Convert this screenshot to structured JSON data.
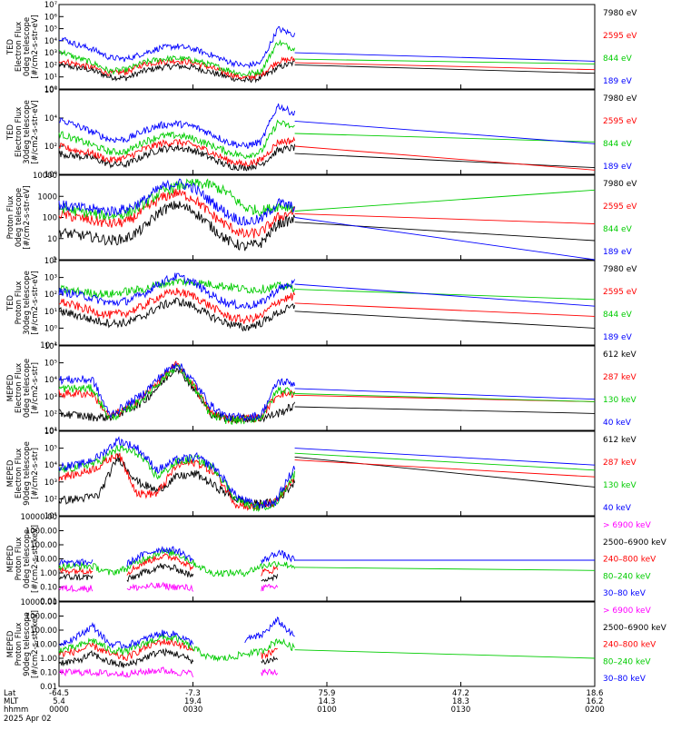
{
  "chart_data": [
    {
      "type": "line",
      "ylabel_lines": [
        "TED",
        "Electron Flux",
        "0deg telescope",
        "[#/cm2-s-str-eV]"
      ],
      "y_scale": "log",
      "ylim": [
        1,
        10000000
      ],
      "yticks": [
        "10⁰",
        "10¹",
        "10²",
        "10³",
        "10⁴",
        "10⁵",
        "10⁶",
        "10⁷"
      ],
      "channels": [
        {
          "label": "7980 eV",
          "color": "#000000",
          "values": [
            100,
            60,
            35,
            10,
            8,
            30,
            60,
            80,
            60,
            25,
            10,
            5,
            8,
            60,
            150,
            100,
            60,
            20
          ]
        },
        {
          "label": "2595 eV",
          "color": "#ff0000",
          "values": [
            250,
            120,
            60,
            20,
            25,
            110,
            180,
            220,
            150,
            60,
            20,
            8,
            15,
            200,
            300,
            150,
            80,
            40
          ]
        },
        {
          "label": "844 eV",
          "color": "#00cc00",
          "values": [
            1500,
            400,
            150,
            30,
            40,
            150,
            300,
            350,
            250,
            100,
            40,
            15,
            30,
            8000,
            2000,
            300,
            200,
            120
          ]
        },
        {
          "label": "189 eV",
          "color": "#0000ff",
          "values": [
            20000,
            5000,
            2000,
            400,
            300,
            900,
            2500,
            3500,
            2000,
            700,
            200,
            80,
            150,
            100000,
            30000,
            1000,
            500,
            200
          ]
        }
      ]
    },
    {
      "type": "line",
      "ylabel_lines": [
        "TED",
        "Electron Flux",
        "30deg telescope",
        "[#/cm2-s-str-eV]"
      ],
      "y_scale": "log",
      "ylim": [
        1,
        1000000
      ],
      "yticks": [
        "10⁰",
        "10²",
        "10⁴",
        "10⁶"
      ],
      "channels": [
        {
          "label": "7980 eV",
          "color": "#000000",
          "values": [
            30,
            20,
            15,
            5,
            5,
            20,
            60,
            80,
            50,
            15,
            4,
            3,
            5,
            50,
            80,
            30,
            10,
            3
          ]
        },
        {
          "label": "2595 eV",
          "color": "#ff0000",
          "values": [
            100,
            50,
            30,
            10,
            15,
            60,
            150,
            200,
            120,
            40,
            10,
            5,
            10,
            200,
            250,
            100,
            10,
            2
          ]
        },
        {
          "label": "844 eV",
          "color": "#00cc00",
          "values": [
            800,
            300,
            120,
            40,
            40,
            200,
            500,
            600,
            350,
            120,
            40,
            20,
            40,
            5000,
            2000,
            800,
            400,
            200
          ]
        },
        {
          "label": "189 eV",
          "color": "#0000ff",
          "values": [
            8000,
            3000,
            1000,
            300,
            300,
            1200,
            3000,
            4000,
            2500,
            800,
            200,
            100,
            200,
            80000,
            20000,
            6000,
            1200,
            150
          ]
        }
      ]
    },
    {
      "type": "line",
      "ylabel_lines": [
        "Proton Flux",
        "0deg telescope",
        "[#/cm2-s-str-eV]"
      ],
      "y_scale": "log",
      "ylim": [
        1,
        10000
      ],
      "yticks": [
        "1",
        "10",
        "100",
        "1000",
        "10000"
      ],
      "channels": [
        {
          "label": "7980 eV",
          "color": "#000000",
          "values": [
            20,
            15,
            12,
            8,
            10,
            30,
            200,
            400,
            200,
            40,
            8,
            4,
            6,
            50,
            80,
            60,
            20,
            8
          ]
        },
        {
          "label": "2595 eV",
          "color": "#ff0000",
          "values": [
            150,
            100,
            70,
            50,
            60,
            200,
            800,
            1500,
            800,
            150,
            40,
            15,
            20,
            100,
            200,
            150,
            80,
            50
          ]
        },
        {
          "label": "844 eV",
          "color": "#00cc00",
          "values": [
            300,
            200,
            150,
            120,
            150,
            400,
            1500,
            3000,
            4000,
            3500,
            1500,
            300,
            200,
            350,
            300,
            200,
            500,
            2000
          ]
        },
        {
          "label": "189 eV",
          "color": "#0000ff",
          "values": [
            400,
            300,
            250,
            200,
            250,
            600,
            2500,
            4500,
            2500,
            600,
            150,
            60,
            80,
            500,
            300,
            100,
            10,
            1
          ]
        }
      ]
    },
    {
      "type": "line",
      "ylabel_lines": [
        "TED",
        "Proton Flux",
        "30deg telescope",
        "[#/cm2-s-str-eV]"
      ],
      "y_scale": "log",
      "ylim": [
        0.1,
        10000
      ],
      "yticks": [
        "10⁻¹",
        "10⁰",
        "10¹",
        "10²",
        "10³",
        "10⁴"
      ],
      "channels": [
        {
          "label": "7980 eV",
          "color": "#000000",
          "values": [
            10,
            6,
            3,
            2,
            2,
            5,
            20,
            40,
            20,
            5,
            2,
            1,
            2,
            8,
            20,
            10,
            3,
            1
          ]
        },
        {
          "label": "2595 eV",
          "color": "#ff0000",
          "values": [
            40,
            20,
            10,
            6,
            8,
            20,
            80,
            150,
            80,
            20,
            5,
            3,
            5,
            40,
            80,
            30,
            12,
            5
          ]
        },
        {
          "label": "844 eV",
          "color": "#00cc00",
          "values": [
            200,
            150,
            120,
            100,
            150,
            200,
            400,
            600,
            500,
            400,
            300,
            200,
            200,
            300,
            250,
            200,
            100,
            50
          ]
        },
        {
          "label": "189 eV",
          "color": "#0000ff",
          "values": [
            150,
            100,
            60,
            30,
            40,
            100,
            500,
            1200,
            500,
            100,
            30,
            20,
            30,
            200,
            500,
            400,
            100,
            20
          ]
        }
      ]
    },
    {
      "type": "line",
      "ylabel_lines": [
        "MEPED",
        "Electron Flux",
        "0deg telescope",
        "[#/cm2-s-str]"
      ],
      "y_scale": "log",
      "ylim": [
        10,
        1000000
      ],
      "yticks": [
        "10¹",
        "10²",
        "10³",
        "10⁴",
        "10⁵",
        "10⁶"
      ],
      "channels": [
        {
          "label": "612 keV",
          "color": "#000000",
          "values": [
            100,
            80,
            60,
            60,
            150,
            500,
            5000,
            60000,
            3000,
            100,
            50,
            50,
            50,
            100,
            300,
            250,
            150,
            100
          ]
        },
        {
          "label": "287 keV",
          "color": "#ff0000",
          "values": [
            1500,
            1500,
            1500,
            60,
            200,
            1000,
            10000,
            80000,
            5000,
            100,
            50,
            50,
            60,
            1500,
            1500,
            1200,
            700,
            500
          ]
        },
        {
          "label": "130 keV",
          "color": "#00cc00",
          "values": [
            3000,
            3000,
            3000,
            50,
            150,
            800,
            8000,
            70000,
            4000,
            80,
            40,
            40,
            60,
            2500,
            2200,
            1500,
            900,
            500
          ]
        },
        {
          "label": "40 keV",
          "color": "#0000ff",
          "values": [
            10000,
            10000,
            10000,
            80,
            300,
            1500,
            15000,
            100000,
            8000,
            300,
            60,
            60,
            80,
            8000,
            6000,
            3000,
            1500,
            700
          ]
        }
      ]
    },
    {
      "type": "line",
      "ylabel_lines": [
        "MEPED",
        "Electron Flux",
        "90deg telescope",
        "[#/cm2-s-str]"
      ],
      "y_scale": "log",
      "ylim": [
        10,
        1000000
      ],
      "yticks": [
        "10¹",
        "10²",
        "10³",
        "10⁴",
        "10⁵",
        "10⁶"
      ],
      "channels": [
        {
          "label": "612 keV",
          "color": "#000000",
          "values": [
            80,
            100,
            150,
            30000,
            1000,
            300,
            2000,
            3000,
            500,
            100,
            50,
            60,
            1000,
            30000,
            500,
            500
          ]
        },
        {
          "label": "287 keV",
          "color": "#ff0000",
          "values": [
            2000,
            3000,
            8000,
            50000,
            200,
            200,
            10000,
            15000,
            3000,
            50,
            30,
            60,
            1500,
            20000,
            2000,
            2000
          ]
        },
        {
          "label": "130 keV",
          "color": "#00cc00",
          "values": [
            5000,
            8000,
            15000,
            100000,
            50000,
            2000,
            15000,
            25000,
            5000,
            100,
            30,
            50,
            3000,
            50000,
            5000,
            5000
          ]
        },
        {
          "label": "40 keV",
          "color": "#0000ff",
          "values": [
            8000,
            10000,
            30000,
            300000,
            100000,
            5000,
            20000,
            30000,
            6000,
            150,
            40,
            60,
            8000,
            100000,
            10000,
            10000
          ]
        }
      ]
    },
    {
      "type": "line",
      "ylabel_lines": [
        "MEPED",
        "Proton Flux",
        "0deg telescope",
        "[#/cm2-s-str-keV]"
      ],
      "y_scale": "log",
      "ylim": [
        0.01,
        10000
      ],
      "yticks": [
        "0.01",
        "0.10",
        "1.00",
        "10.00",
        "100.00",
        "1000.00",
        "10000.00"
      ],
      "channels": [
        {
          "label": "> 6900 keV",
          "color": "#ff00ff",
          "values": [
            0.08,
            0.08,
            0.08,
            null,
            0.08,
            0.1,
            0.12,
            0.1,
            0.08,
            null,
            null,
            null,
            0.08,
            0.1,
            null,
            null,
            null,
            null
          ]
        },
        {
          "label": "2500–6900 keV",
          "color": "#000000",
          "values": [
            0.5,
            0.5,
            0.5,
            null,
            0.3,
            1,
            3,
            2,
            0.5,
            null,
            null,
            null,
            0.4,
            0.5,
            null,
            null,
            null,
            null
          ]
        },
        {
          "label": "240–800 keV",
          "color": "#ff0000",
          "values": [
            1.5,
            1.5,
            1.5,
            null,
            1,
            5,
            15,
            12,
            2,
            null,
            null,
            null,
            1,
            2,
            null,
            null,
            null,
            null
          ]
        },
        {
          "label": "80–240 keV",
          "color": "#00cc00",
          "values": [
            3,
            3,
            3,
            1,
            2,
            10,
            30,
            25,
            5,
            1,
            1,
            1,
            3,
            5,
            3,
            2.5,
            2,
            1.5
          ]
        },
        {
          "label": "30–80 keV",
          "color": "#0000ff",
          "values": [
            5,
            5,
            6,
            null,
            4,
            20,
            50,
            40,
            8,
            null,
            null,
            null,
            6,
            30,
            8,
            8,
            8,
            8
          ]
        }
      ]
    },
    {
      "type": "line",
      "ylabel_lines": [
        "MEPED",
        "Proton Flux",
        "90deg telescope",
        "[#/cm2-s-str-keV]"
      ],
      "y_scale": "log",
      "ylim": [
        0.01,
        10000
      ],
      "yticks": [
        "0.01",
        "0.10",
        "1.00",
        "10.00",
        "100.00",
        "1000.00",
        "10000.00"
      ],
      "channels": [
        {
          "label": "> 6900 keV",
          "color": "#ff00ff",
          "values": [
            0.1,
            0.1,
            0.1,
            0.08,
            0.08,
            0.1,
            0.15,
            0.1,
            0.08,
            null,
            null,
            null,
            0.1,
            0.1,
            null,
            null,
            null,
            null
          ]
        },
        {
          "label": "2500–6900 keV",
          "color": "#000000",
          "values": [
            0.5,
            0.6,
            2,
            0.5,
            0.3,
            1,
            3,
            2,
            0.6,
            null,
            null,
            null,
            0.5,
            1,
            null,
            null,
            null,
            null
          ]
        },
        {
          "label": "240–800 keV",
          "color": "#ff0000",
          "values": [
            2,
            3,
            8,
            2,
            1,
            5,
            15,
            12,
            3,
            null,
            null,
            null,
            1.5,
            4,
            null,
            null,
            null,
            null
          ]
        },
        {
          "label": "80–240 keV",
          "color": "#00cc00",
          "values": [
            4,
            6,
            20,
            4,
            3,
            10,
            30,
            25,
            5,
            1,
            1,
            2,
            3,
            20,
            5,
            4,
            3,
            1
          ]
        },
        {
          "label": "30–80 keV",
          "color": "#0000ff",
          "values": [
            10,
            30,
            200,
            10,
            8,
            20,
            60,
            50,
            10,
            null,
            null,
            20,
            40,
            500,
            30,
            null,
            null,
            null
          ]
        }
      ]
    }
  ],
  "footer": {
    "row_labels": [
      "Lat",
      "MLT",
      "hhmm"
    ],
    "date": "2025 Apr 02",
    "columns": [
      {
        "lat": "-64.5",
        "mlt": "5.4",
        "hhmm": "0000"
      },
      {
        "lat": "-7.3",
        "mlt": "19.4",
        "hhmm": "0030"
      },
      {
        "lat": "75.9",
        "mlt": "14.3",
        "hhmm": "0100"
      },
      {
        "lat": "47.2",
        "mlt": "18.3",
        "hhmm": "0130"
      },
      {
        "lat": "18.6",
        "mlt": "16.2",
        "hhmm": "0200"
      }
    ]
  }
}
